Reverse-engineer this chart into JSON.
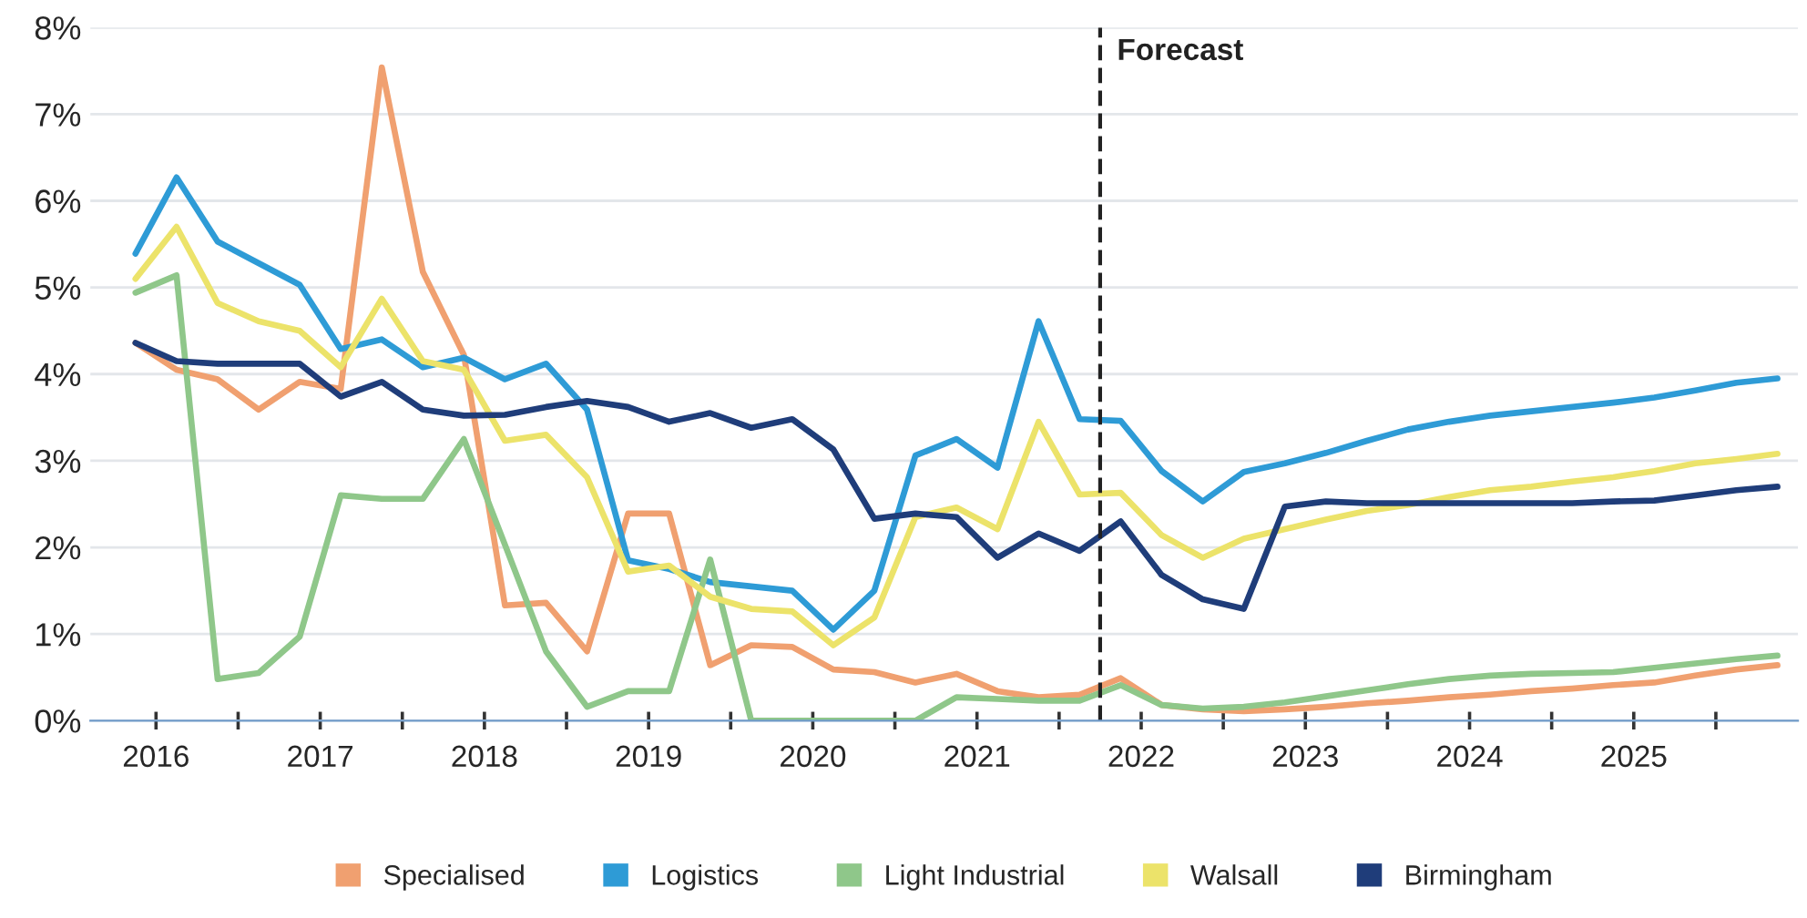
{
  "chart_data": {
    "type": "line",
    "x": [
      2016.375,
      2016.625,
      2016.875,
      2017.125,
      2017.375,
      2017.625,
      2017.875,
      2018.125,
      2018.375,
      2018.625,
      2018.875,
      2019.125,
      2019.375,
      2019.625,
      2019.875,
      2020.125,
      2020.375,
      2020.625,
      2020.875,
      2021.125,
      2021.375,
      2021.625,
      2021.875,
      2022.125,
      2022.375,
      2022.625,
      2022.875,
      2023.125,
      2023.375,
      2023.625,
      2023.875,
      2024.125,
      2024.375,
      2024.625,
      2024.875,
      2025.125,
      2025.375,
      2025.625,
      2025.875,
      2026.125,
      2026.375
    ],
    "series": [
      {
        "name": "Specialised",
        "color": "#f0a070",
        "values": [
          4.36,
          4.05,
          3.94,
          3.59,
          3.91,
          3.83,
          7.54,
          5.18,
          4.22,
          1.33,
          1.36,
          0.8,
          2.39,
          2.39,
          0.64,
          0.87,
          0.85,
          0.59,
          0.56,
          0.44,
          0.54,
          0.34,
          0.27,
          0.3,
          0.49,
          0.18,
          0.13,
          0.11,
          0.13,
          0.16,
          0.2,
          0.23,
          0.27,
          0.3,
          0.34,
          0.37,
          0.41,
          0.44,
          0.52,
          0.59,
          0.64
        ]
      },
      {
        "name": "Logistics",
        "color": "#2e9bd6",
        "values": [
          5.39,
          6.27,
          5.53,
          5.28,
          5.03,
          4.29,
          4.4,
          4.08,
          4.19,
          3.94,
          4.12,
          3.59,
          1.85,
          1.75,
          1.6,
          1.55,
          1.5,
          1.05,
          1.5,
          3.06,
          3.25,
          2.92,
          4.61,
          3.48,
          3.46,
          2.88,
          2.53,
          2.87,
          2.97,
          3.09,
          3.23,
          3.36,
          3.45,
          3.52,
          3.57,
          3.62,
          3.67,
          3.73,
          3.81,
          3.9,
          3.95
        ]
      },
      {
        "name": "Light Industrial",
        "color": "#8fc78a",
        "values": [
          4.94,
          5.14,
          0.48,
          0.55,
          0.97,
          2.6,
          2.56,
          2.56,
          3.25,
          2.03,
          0.8,
          0.16,
          0.34,
          0.34,
          1.86,
          0,
          0,
          0,
          0,
          0,
          0.27,
          0.25,
          0.23,
          0.23,
          0.41,
          0.18,
          0.14,
          0.16,
          0.21,
          0.28,
          0.35,
          0.42,
          0.48,
          0.52,
          0.54,
          0.55,
          0.56,
          0.61,
          0.66,
          0.71,
          0.75
        ]
      },
      {
        "name": "Walsall",
        "color": "#ece36a",
        "values": [
          5.1,
          5.7,
          4.82,
          4.61,
          4.5,
          4.08,
          4.87,
          4.15,
          4.05,
          3.23,
          3.3,
          2.81,
          1.72,
          1.79,
          1.43,
          1.29,
          1.26,
          0.87,
          1.19,
          2.35,
          2.46,
          2.21,
          3.45,
          2.61,
          2.63,
          2.14,
          1.88,
          2.1,
          2.21,
          2.32,
          2.42,
          2.49,
          2.58,
          2.66,
          2.7,
          2.76,
          2.81,
          2.88,
          2.97,
          3.02,
          3.08
        ]
      },
      {
        "name": "Birmingham",
        "color": "#1f3d7a",
        "values": [
          4.36,
          4.15,
          4.12,
          4.12,
          4.12,
          3.74,
          3.91,
          3.59,
          3.52,
          3.53,
          3.62,
          3.69,
          3.62,
          3.45,
          3.55,
          3.38,
          3.48,
          3.13,
          2.33,
          2.39,
          2.35,
          1.88,
          2.16,
          1.96,
          2.3,
          1.68,
          1.4,
          1.29,
          2.47,
          2.53,
          2.51,
          2.51,
          2.51,
          2.51,
          2.51,
          2.51,
          2.53,
          2.54,
          2.6,
          2.66,
          2.7
        ]
      }
    ],
    "xlim": [
      2016.1,
      2026.5
    ],
    "xticks": [
      {
        "value": 2016.5,
        "label": "2016"
      },
      {
        "value": 2017.5,
        "label": "2017"
      },
      {
        "value": 2018.5,
        "label": "2018"
      },
      {
        "value": 2019.5,
        "label": "2019"
      },
      {
        "value": 2020.5,
        "label": "2020"
      },
      {
        "value": 2021.5,
        "label": "2021"
      },
      {
        "value": 2022.5,
        "label": "2022"
      },
      {
        "value": 2023.5,
        "label": "2023"
      },
      {
        "value": 2024.5,
        "label": "2024"
      },
      {
        "value": 2025.5,
        "label": "2025"
      },
      {
        "value": 2017,
        "label": null
      },
      {
        "value": 2018,
        "label": null
      },
      {
        "value": 2019,
        "label": null
      },
      {
        "value": 2020,
        "label": null
      },
      {
        "value": 2021,
        "label": null
      },
      {
        "value": 2022,
        "label": null
      },
      {
        "value": 2023,
        "label": null
      },
      {
        "value": 2024,
        "label": null
      },
      {
        "value": 2025,
        "label": null
      },
      {
        "value": 2026,
        "label": null
      }
    ],
    "ylim": [
      0,
      8
    ],
    "yticks": [
      {
        "value": 0,
        "label": "0%"
      },
      {
        "value": 1,
        "label": "1%"
      },
      {
        "value": 2,
        "label": "2%"
      },
      {
        "value": 3,
        "label": "3%"
      },
      {
        "value": 4,
        "label": "4%"
      },
      {
        "value": 5,
        "label": "5%"
      },
      {
        "value": 6,
        "label": "6%"
      },
      {
        "value": 7,
        "label": "7%"
      },
      {
        "value": 8,
        "label": "8%"
      }
    ],
    "ref_lines": [
      {
        "axis": "x",
        "value": 2022.25,
        "label": "Forecast",
        "color": "#222222",
        "line_style": "dashed"
      }
    ],
    "grid": "y",
    "legend": "bottom",
    "marker": "none",
    "line_style": "solid"
  }
}
